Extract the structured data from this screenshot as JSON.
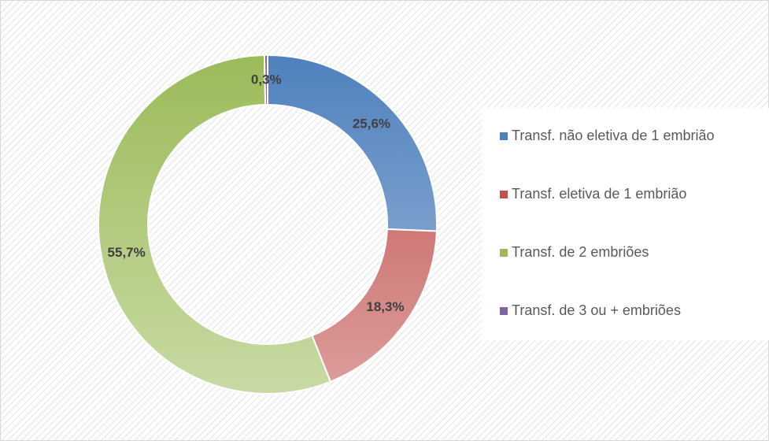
{
  "chart_data": {
    "type": "donut",
    "categories": [
      "Transf. não eletiva de 1 embrião",
      "Transf. eletiva de 1 embrião",
      "Transf. de 2 embriões",
      "Transf. de 3 ou + embriões"
    ],
    "values": [
      25.6,
      18.3,
      55.7,
      0.3
    ],
    "value_labels": [
      "25,6%",
      "18,3%",
      "55,7%",
      "0,3%"
    ],
    "colors": [
      "#4f81bd",
      "#c0504d",
      "#9bbb59",
      "#8064a2"
    ],
    "legend": "right"
  }
}
